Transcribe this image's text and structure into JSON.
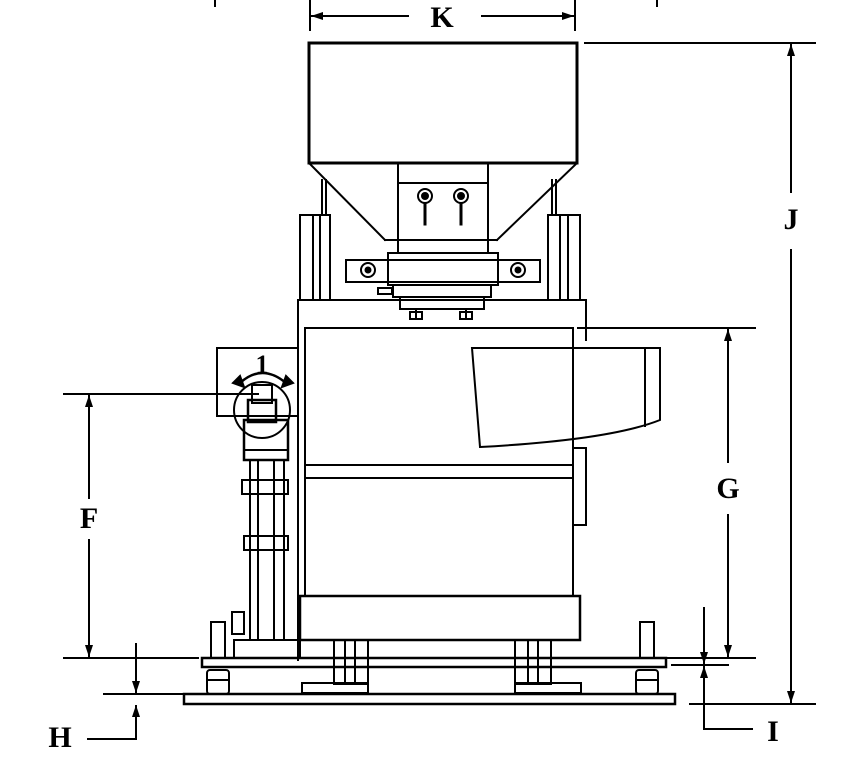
{
  "drawing": {
    "ink_color": "#000000",
    "paper_color": "#ffffff",
    "dimension_labels": {
      "k": "K",
      "j": "J",
      "f": "F",
      "g": "G",
      "h": "H",
      "i": "I"
    },
    "callout_number": "1"
  }
}
